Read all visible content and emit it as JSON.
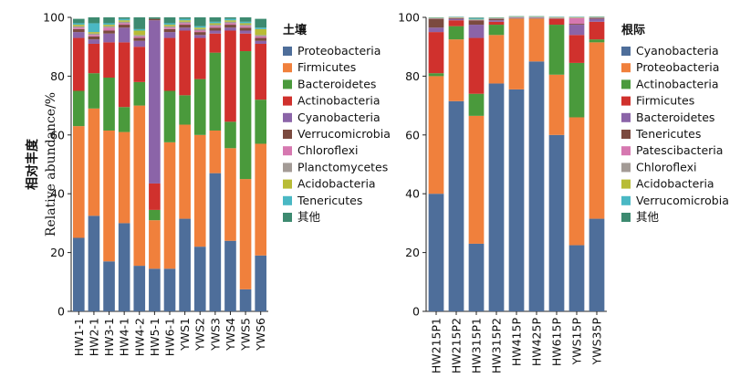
{
  "ylabel_cn": "相对丰度",
  "ylabel_en": "Relative abundance/%",
  "chart_data": [
    {
      "type": "bar",
      "stacked": true,
      "legend_title": "土壤",
      "legend_placement": "right",
      "ylim": [
        0,
        100
      ],
      "yticks": [
        0,
        20,
        40,
        60,
        80,
        100
      ],
      "categories": [
        "HW1-1",
        "HW2-1",
        "HW3-1",
        "HW4-1",
        "HW4-2",
        "HW5-1",
        "HW6-1",
        "YWS1",
        "YWS2",
        "YWS3",
        "YWS4",
        "YWS5",
        "YWS6"
      ],
      "series": [
        {
          "name": "Proteobacteria",
          "color": "#4e6e9a",
          "values": [
            25,
            32.5,
            17,
            30,
            15.5,
            14.5,
            14.5,
            31.5,
            22,
            47,
            24,
            7.5,
            19
          ]
        },
        {
          "name": "Firmicutes",
          "color": "#f0803c",
          "values": [
            38,
            36.5,
            44.5,
            31,
            54.5,
            16.5,
            43,
            32,
            38,
            14.5,
            31.5,
            37.5,
            38
          ]
        },
        {
          "name": "Bacteroidetes",
          "color": "#4a9a3c",
          "values": [
            12,
            12,
            18,
            8.5,
            8,
            3.5,
            17.5,
            10,
            19,
            26.5,
            9,
            43.5,
            15
          ]
        },
        {
          "name": "Actinobacteria",
          "color": "#d0312d",
          "values": [
            18,
            10,
            12,
            22,
            12,
            9,
            18,
            22,
            14,
            6.5,
            31,
            6,
            19
          ]
        },
        {
          "name": "Cyanobacteria",
          "color": "#8b64a8",
          "values": [
            2,
            1.5,
            3,
            5,
            2,
            55.5,
            2,
            1,
            1,
            1,
            1,
            1,
            1
          ]
        },
        {
          "name": "Verrucomicrobia",
          "color": "#7b4a3f",
          "values": [
            1,
            1,
            1,
            1,
            1,
            0.5,
            1,
            1,
            1,
            1,
            1,
            1,
            1
          ]
        },
        {
          "name": "Chloroflexi",
          "color": "#d678b0",
          "values": [
            0.5,
            0.5,
            1,
            0.5,
            0.5,
            0,
            0.5,
            0.5,
            0.5,
            0.5,
            0.5,
            0.5,
            0.5
          ]
        },
        {
          "name": "Planctomycetes",
          "color": "#a39b96",
          "values": [
            0.5,
            0.5,
            0.5,
            0.5,
            0.5,
            0,
            0.5,
            0.5,
            0.5,
            0.5,
            0.5,
            0.5,
            0.5
          ]
        },
        {
          "name": "Acidobacteria",
          "color": "#b8bc36",
          "values": [
            0.5,
            0.5,
            0.5,
            0.5,
            1.5,
            0,
            0.5,
            0.5,
            0.5,
            0.5,
            0.5,
            0.5,
            2
          ]
        },
        {
          "name": "Tenericutes",
          "color": "#4ab8c4",
          "values": [
            0.5,
            3,
            0.5,
            0.5,
            0.5,
            0,
            0.5,
            0.5,
            0.5,
            0.5,
            0.5,
            0.5,
            0.5
          ]
        },
        {
          "name": "其他",
          "color": "#3d8a70",
          "values": [
            1.5,
            2,
            2,
            0.5,
            4,
            0.5,
            2,
            0.5,
            3,
            1.5,
            0.5,
            1.5,
            3
          ]
        }
      ]
    },
    {
      "type": "bar",
      "stacked": true,
      "legend_title": "根际",
      "legend_placement": "right",
      "ylim": [
        0,
        100
      ],
      "yticks": [
        0,
        20,
        40,
        60,
        80,
        100
      ],
      "categories": [
        "HW215P1",
        "HW215P2",
        "HW315P1",
        "HW315P2",
        "HW415P",
        "HW425P",
        "HW615P",
        "YWS15P",
        "YWS35P"
      ],
      "series": [
        {
          "name": "Cyanobacteria",
          "color": "#4e6e9a",
          "values": [
            40,
            71.5,
            23,
            77.5,
            75.5,
            85,
            60,
            22.5,
            31.5
          ]
        },
        {
          "name": "Proteobacteria",
          "color": "#f0803c",
          "values": [
            40,
            21,
            43.5,
            16.5,
            24,
            14.5,
            20.5,
            43.5,
            60
          ]
        },
        {
          "name": "Actinobacteria",
          "color": "#4a9a3c",
          "values": [
            1,
            4.5,
            7.5,
            3.5,
            0.1,
            0.1,
            17,
            18.5,
            1
          ]
        },
        {
          "name": "Firmicutes",
          "color": "#d0312d",
          "values": [
            14,
            2,
            19,
            1,
            0.1,
            0.1,
            2,
            9.5,
            6
          ]
        },
        {
          "name": "Bacteroidetes",
          "color": "#8b64a8",
          "values": [
            1.5,
            0.5,
            4.5,
            0.5,
            0.1,
            0.1,
            0.1,
            3.5,
            1
          ]
        },
        {
          "name": "Tenericutes",
          "color": "#7b4a3f",
          "values": [
            3,
            0.2,
            1.5,
            0.5,
            0.1,
            0.1,
            0.1,
            0.3,
            0.3
          ]
        },
        {
          "name": "Patescibacteria",
          "color": "#d678b0",
          "values": [
            0.1,
            0.1,
            0.1,
            0.1,
            0.1,
            0.1,
            0.1,
            2,
            0.1
          ]
        },
        {
          "name": "Chloroflexi",
          "color": "#a39b96",
          "values": [
            0.1,
            0.1,
            0.1,
            0.1,
            0.1,
            0.1,
            0.1,
            0.1,
            0.1
          ]
        },
        {
          "name": "Acidobacteria",
          "color": "#b8bc36",
          "values": [
            0.1,
            0.1,
            0.1,
            0.1,
            0.1,
            0.1,
            0.1,
            0.1,
            0.1
          ]
        },
        {
          "name": "Verrucomicrobia",
          "color": "#4ab8c4",
          "values": [
            0.1,
            0.1,
            0.3,
            0.1,
            0.1,
            0.1,
            0.1,
            0.1,
            0.1
          ]
        },
        {
          "name": "其他",
          "color": "#3d8a70",
          "values": [
            0.1,
            0.1,
            0.3,
            0.1,
            0.1,
            0.1,
            0.1,
            0.1,
            0.1
          ]
        }
      ]
    }
  ]
}
